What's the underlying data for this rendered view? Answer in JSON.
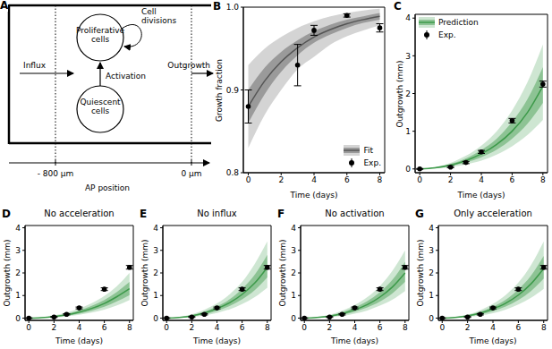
{
  "diagram": {
    "panel": "A",
    "nodes": [
      {
        "label": "Proliferative cells"
      },
      {
        "label": "Quiescent cells"
      }
    ],
    "edges": [
      {
        "label": "Cell divisions"
      },
      {
        "label": "Activation"
      }
    ],
    "arrows": [
      {
        "label": "Influx"
      },
      {
        "label": "Outgrowth"
      }
    ],
    "axis": {
      "label": "AP position",
      "ticks": [
        "- 800 µm",
        "0 µm"
      ]
    }
  },
  "chart_data": [
    {
      "panel": "B",
      "type": "line",
      "x_label": "Time (days)",
      "y_label": "Growth fraction",
      "x": [
        0,
        1,
        2,
        3,
        4,
        5,
        6,
        7,
        8
      ],
      "xlim": [
        -0.3,
        8.3
      ],
      "xticks": [
        0,
        2,
        4,
        6,
        8
      ],
      "ylim": [
        0.8,
        1
      ],
      "yticks": [
        0.8,
        0.9,
        {
          "value": 1,
          "label": "1.0"
        }
      ],
      "legend": "lower right",
      "series": [
        {
          "name": "Fit",
          "type": "band",
          "color": "#555555",
          "values": [
            0.88,
            0.911,
            0.934,
            0.951,
            0.964,
            0.973,
            0.98,
            0.985,
            0.989
          ],
          "band_inner": {
            "lower": [
              0.86,
              0.895,
              0.922,
              0.942,
              0.957,
              0.967,
              0.975,
              0.981,
              0.985
            ],
            "upper": [
              0.9,
              0.927,
              0.946,
              0.96,
              0.971,
              0.979,
              0.985,
              0.989,
              0.993
            ]
          },
          "band_outer": {
            "lower": [
              0.83,
              0.87,
              0.9,
              0.925,
              0.94,
              0.955,
              0.965,
              0.972,
              0.978
            ],
            "upper": [
              0.93,
              0.95,
              0.964,
              0.975,
              0.983,
              0.989,
              0.993,
              0.996,
              0.998
            ]
          }
        },
        {
          "name": "Exp.",
          "type": "scatter",
          "marker": "circle",
          "color": "#000000",
          "x": [
            0,
            3,
            4,
            6,
            8
          ],
          "values": [
            0.88,
            0.93,
            0.972,
            0.99,
            0.975
          ],
          "errors": [
            0.02,
            0.025,
            0.006,
            0.002,
            0.005
          ]
        }
      ]
    },
    {
      "panel": "C",
      "type": "line",
      "x_label": "Time (days)",
      "y_label": "Outgrowth (mm)",
      "x": [
        0,
        1,
        2,
        3,
        4,
        5,
        6,
        7,
        8
      ],
      "xlim": [
        -0.3,
        8.3
      ],
      "xticks": [
        0,
        2,
        4,
        6,
        8
      ],
      "ylim": [
        -0.1,
        4.1
      ],
      "yticks": [
        0,
        1,
        2,
        3,
        4
      ],
      "legend": "upper left",
      "series": [
        {
          "name": "Prediction",
          "type": "band",
          "color": "#3d9a4a",
          "values": [
            0,
            0.03,
            0.1,
            0.22,
            0.4,
            0.65,
            1,
            1.5,
            2.2
          ],
          "band_inner": {
            "lower": [
              0,
              0.02,
              0.08,
              0.17,
              0.31,
              0.51,
              0.8,
              1.2,
              1.75
            ],
            "upper": [
              0,
              0.04,
              0.13,
              0.28,
              0.5,
              0.8,
              1.25,
              1.85,
              2.7
            ]
          },
          "band_outer": {
            "lower": [
              0,
              0.01,
              0.05,
              0.12,
              0.22,
              0.38,
              0.6,
              0.9,
              1.3
            ],
            "upper": [
              0,
              0.05,
              0.16,
              0.35,
              0.62,
              1,
              1.55,
              2.3,
              3.3
            ]
          }
        },
        {
          "name": "Exp.",
          "type": "scatter",
          "marker": "circle",
          "color": "#000000",
          "x": [
            0,
            2,
            3,
            4,
            6,
            8
          ],
          "values": [
            0,
            0.05,
            0.17,
            0.45,
            1.28,
            2.25
          ],
          "errors": [
            0.01,
            0.02,
            0.03,
            0.04,
            0.06,
            0.08
          ]
        }
      ]
    },
    {
      "panel": "D",
      "type": "line",
      "title": "No acceleration",
      "x_label": "Time (days)",
      "y_label": "Outgrowth (mm)",
      "x": [
        0,
        1,
        2,
        3,
        4,
        5,
        6,
        7,
        8
      ],
      "xlim": [
        -0.3,
        8.3
      ],
      "xticks": [
        0,
        2,
        4,
        6,
        8
      ],
      "ylim": [
        -0.1,
        4.1
      ],
      "yticks": [
        0,
        1,
        2,
        3,
        4
      ],
      "series": [
        {
          "type": "band",
          "color": "#3d9a4a",
          "values": [
            0,
            0.02,
            0.07,
            0.15,
            0.27,
            0.43,
            0.65,
            0.95,
            1.3
          ],
          "band_inner": {
            "lower": [
              0,
              0.015,
              0.05,
              0.11,
              0.2,
              0.33,
              0.5,
              0.74,
              1.02
            ],
            "upper": [
              0,
              0.03,
              0.09,
              0.19,
              0.34,
              0.54,
              0.8,
              1.16,
              1.6
            ]
          },
          "band_outer": {
            "lower": [
              0,
              0.01,
              0.03,
              0.08,
              0.15,
              0.25,
              0.38,
              0.56,
              0.8
            ],
            "upper": [
              0,
              0.04,
              0.12,
              0.25,
              0.42,
              0.66,
              0.98,
              1.42,
              2
            ]
          }
        },
        {
          "type": "scatter",
          "marker": "circle",
          "color": "#000000",
          "x": [
            0,
            2,
            3,
            4,
            6,
            8
          ],
          "values": [
            0,
            0.05,
            0.17,
            0.45,
            1.28,
            2.25
          ],
          "errors": [
            0.01,
            0.02,
            0.03,
            0.04,
            0.06,
            0.08
          ]
        }
      ]
    },
    {
      "panel": "E",
      "type": "line",
      "title": "No influx",
      "x_label": "Time (days)",
      "y_label": "Outgrowth (mm)",
      "x": [
        0,
        1,
        2,
        3,
        4,
        5,
        6,
        7,
        8
      ],
      "xlim": [
        -0.3,
        8.3
      ],
      "xticks": [
        0,
        2,
        4,
        6,
        8
      ],
      "ylim": [
        -0.1,
        4.1
      ],
      "yticks": [
        0,
        1,
        2,
        3,
        4
      ],
      "series": [
        {
          "type": "band",
          "color": "#3d9a4a",
          "values": [
            0,
            0.03,
            0.1,
            0.23,
            0.42,
            0.68,
            1.05,
            1.55,
            2.25
          ],
          "band_inner": {
            "lower": [
              0,
              0.02,
              0.08,
              0.18,
              0.32,
              0.53,
              0.83,
              1.24,
              1.8
            ],
            "upper": [
              0,
              0.04,
              0.13,
              0.29,
              0.52,
              0.83,
              1.3,
              1.92,
              2.8
            ]
          },
          "band_outer": {
            "lower": [
              0,
              0.01,
              0.05,
              0.12,
              0.23,
              0.39,
              0.62,
              0.93,
              1.35
            ],
            "upper": [
              0,
              0.05,
              0.17,
              0.37,
              0.65,
              1.05,
              1.6,
              2.4,
              3.4
            ]
          }
        },
        {
          "type": "scatter",
          "marker": "circle",
          "color": "#000000",
          "x": [
            0,
            2,
            3,
            4,
            6,
            8
          ],
          "values": [
            0,
            0.05,
            0.17,
            0.45,
            1.28,
            2.25
          ],
          "errors": [
            0.01,
            0.02,
            0.03,
            0.04,
            0.06,
            0.08
          ]
        }
      ]
    },
    {
      "panel": "F",
      "type": "line",
      "title": "No activation",
      "x_label": "Time (days)",
      "y_label": "Outgrowth (mm)",
      "x": [
        0,
        1,
        2,
        3,
        4,
        5,
        6,
        7,
        8
      ],
      "xlim": [
        -0.3,
        8.3
      ],
      "xticks": [
        0,
        2,
        4,
        6,
        8
      ],
      "ylim": [
        -0.1,
        4.1
      ],
      "yticks": [
        0,
        1,
        2,
        3,
        4
      ],
      "series": [
        {
          "type": "band",
          "color": "#3d9a4a",
          "values": [
            0,
            0.03,
            0.09,
            0.2,
            0.37,
            0.6,
            0.93,
            1.38,
            2
          ],
          "band_inner": {
            "lower": [
              0,
              0.02,
              0.07,
              0.15,
              0.28,
              0.47,
              0.73,
              1.1,
              1.6
            ],
            "upper": [
              0,
              0.04,
              0.12,
              0.26,
              0.47,
              0.75,
              1.15,
              1.7,
              2.5
            ]
          },
          "band_outer": {
            "lower": [
              0,
              0.01,
              0.04,
              0.1,
              0.2,
              0.34,
              0.55,
              0.82,
              1.2
            ],
            "upper": [
              0,
              0.05,
              0.15,
              0.33,
              0.58,
              0.93,
              1.42,
              2.1,
              3
            ]
          }
        },
        {
          "type": "scatter",
          "marker": "circle",
          "color": "#000000",
          "x": [
            0,
            2,
            3,
            4,
            6,
            8
          ],
          "values": [
            0,
            0.05,
            0.17,
            0.45,
            1.28,
            2.25
          ],
          "errors": [
            0.01,
            0.02,
            0.03,
            0.04,
            0.06,
            0.08
          ]
        }
      ]
    },
    {
      "panel": "G",
      "type": "line",
      "title": "Only acceleration",
      "x_label": "Time (days)",
      "y_label": "Outgrowth (mm)",
      "x": [
        0,
        1,
        2,
        3,
        4,
        5,
        6,
        7,
        8
      ],
      "xlim": [
        -0.3,
        8.3
      ],
      "xticks": [
        0,
        2,
        4,
        6,
        8
      ],
      "ylim": [
        -0.1,
        4.1
      ],
      "yticks": [
        0,
        1,
        2,
        3,
        4
      ],
      "series": [
        {
          "type": "band",
          "color": "#3d9a4a",
          "values": [
            0,
            0.03,
            0.1,
            0.22,
            0.41,
            0.66,
            1.02,
            1.52,
            2.2
          ],
          "band_inner": {
            "lower": [
              0,
              0.02,
              0.08,
              0.17,
              0.31,
              0.51,
              0.8,
              1.2,
              1.75
            ],
            "upper": [
              0,
              0.04,
              0.13,
              0.28,
              0.51,
              0.81,
              1.27,
              1.88,
              2.75
            ]
          },
          "band_outer": {
            "lower": [
              0,
              0.01,
              0.05,
              0.12,
              0.22,
              0.38,
              0.6,
              0.9,
              1.3
            ],
            "upper": [
              0,
              0.05,
              0.16,
              0.35,
              0.63,
              1.02,
              1.57,
              2.35,
              3.4
            ]
          }
        },
        {
          "type": "scatter",
          "marker": "circle",
          "color": "#000000",
          "x": [
            0,
            2,
            3,
            4,
            6,
            8
          ],
          "values": [
            0,
            0.05,
            0.17,
            0.45,
            1.28,
            2.25
          ],
          "errors": [
            0.01,
            0.02,
            0.03,
            0.04,
            0.06,
            0.08
          ]
        }
      ]
    }
  ]
}
